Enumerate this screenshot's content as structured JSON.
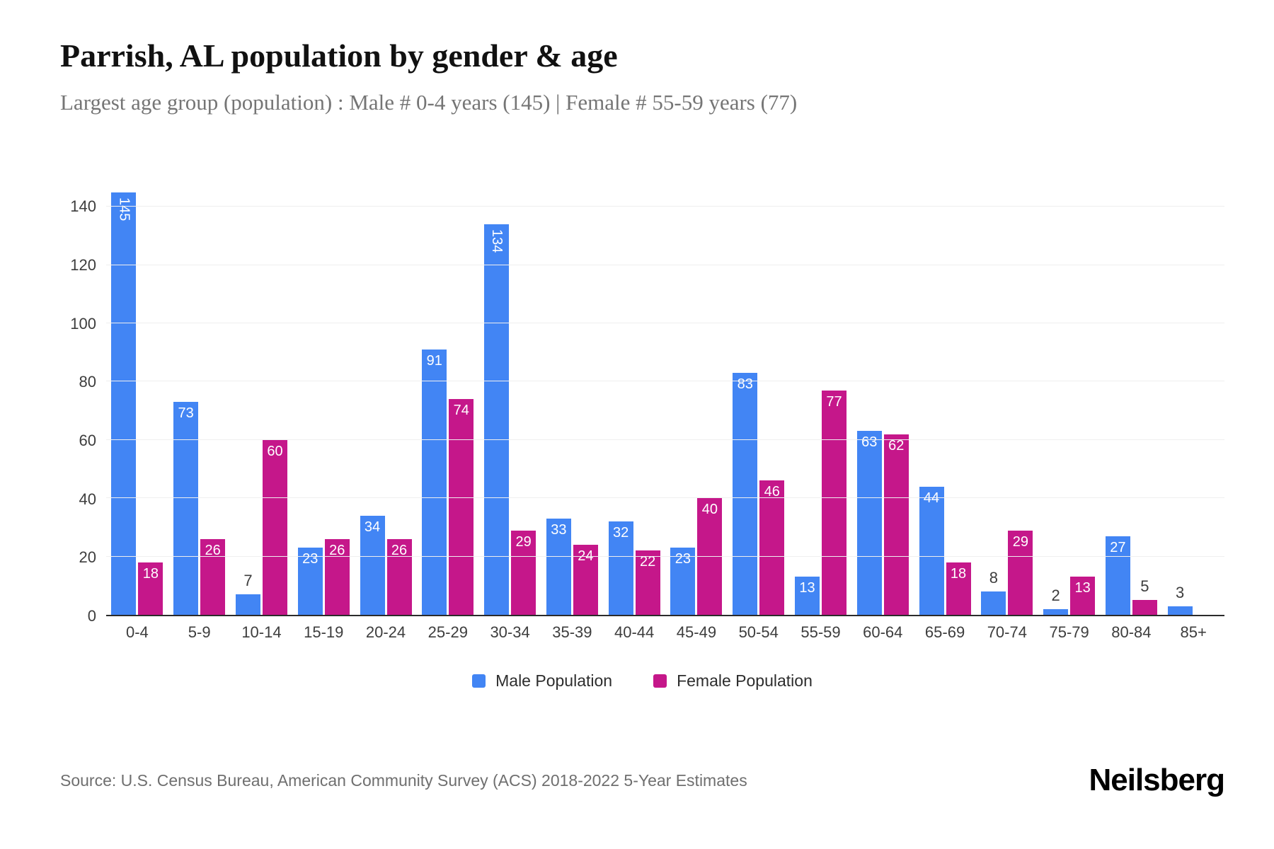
{
  "header": {
    "title": "Parrish, AL population by gender & age",
    "subtitle": "Largest age group (population) : Male # 0-4 years (145) | Female # 55-59 years (77)"
  },
  "chart_data": {
    "type": "bar",
    "title": "Parrish, AL population by gender & age",
    "categories": [
      "0-4",
      "5-9",
      "10-14",
      "15-19",
      "20-24",
      "25-29",
      "30-34",
      "35-39",
      "40-44",
      "45-49",
      "50-54",
      "55-59",
      "60-64",
      "65-69",
      "70-74",
      "75-79",
      "80-84",
      "85+"
    ],
    "series": [
      {
        "name": "Male Population",
        "color": "#4285F4",
        "values": [
          145,
          73,
          7,
          23,
          34,
          91,
          134,
          33,
          32,
          23,
          83,
          13,
          63,
          44,
          8,
          2,
          27,
          3
        ]
      },
      {
        "name": "Female Population",
        "color": "#C5178A",
        "values": [
          18,
          26,
          60,
          26,
          26,
          74,
          29,
          24,
          22,
          40,
          46,
          77,
          62,
          18,
          29,
          13,
          5,
          0
        ]
      }
    ],
    "xlabel": "",
    "ylabel": "",
    "ylim": [
      0,
      150
    ],
    "yticks": [
      0,
      20,
      40,
      60,
      80,
      100,
      120,
      140
    ],
    "grid": "horizontal",
    "legend_position": "bottom"
  },
  "footer": {
    "source": "Source: U.S. Census Bureau, American Community Survey (ACS) 2018-2022 5-Year Estimates",
    "brand": "Neilsberg"
  }
}
